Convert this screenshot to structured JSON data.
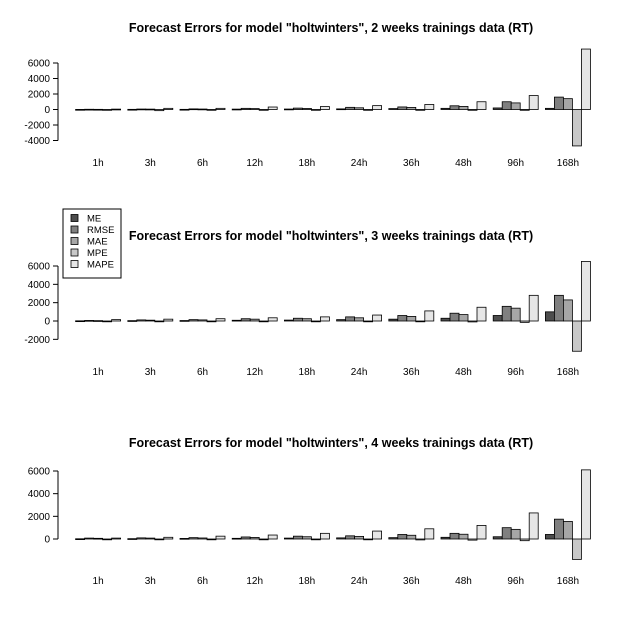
{
  "chart_data": [
    {
      "type": "bar",
      "title": "Forecast Errors for model \"holtwinters\", 2 weeks trainings data (RT)",
      "categories": [
        "1h",
        "3h",
        "6h",
        "12h",
        "18h",
        "24h",
        "36h",
        "48h",
        "96h",
        "168h"
      ],
      "yticks": [
        -4000,
        -2000,
        0,
        2000,
        4000,
        6000
      ],
      "ylim": [
        -4500,
        8200
      ],
      "grid": false,
      "series": [
        {
          "name": "ME",
          "color": "#4d4d4d",
          "values": [
            10,
            20,
            20,
            50,
            60,
            80,
            120,
            150,
            200,
            150
          ]
        },
        {
          "name": "RMSE",
          "color": "#7f7f7f",
          "values": [
            30,
            60,
            80,
            150,
            180,
            280,
            330,
            480,
            1000,
            1600
          ]
        },
        {
          "name": "MAE",
          "color": "#a6a6a6",
          "values": [
            20,
            50,
            60,
            120,
            140,
            220,
            270,
            400,
            850,
            1400
          ]
        },
        {
          "name": "MPE",
          "color": "#c8c8c8",
          "values": [
            -20,
            -150,
            -50,
            -60,
            -60,
            -80,
            -40,
            -60,
            -100,
            -4700
          ]
        },
        {
          "name": "MAPE",
          "color": "#e6e6e6",
          "values": [
            50,
            150,
            150,
            320,
            380,
            500,
            650,
            1000,
            1800,
            7800
          ]
        }
      ]
    },
    {
      "type": "bar",
      "title": "Forecast Errors for model \"holtwinters\", 3 weeks trainings data (RT)",
      "categories": [
        "1h",
        "3h",
        "6h",
        "12h",
        "18h",
        "24h",
        "36h",
        "48h",
        "96h",
        "168h"
      ],
      "yticks": [
        -2000,
        0,
        2000,
        4000,
        6000
      ],
      "ylim": [
        -3300,
        7000
      ],
      "grid": false,
      "legend": {
        "position": "top-left",
        "entries": [
          "ME",
          "RMSE",
          "MAE",
          "MPE",
          "MAPE"
        ]
      },
      "series": [
        {
          "name": "ME",
          "color": "#4d4d4d",
          "values": [
            20,
            40,
            50,
            80,
            100,
            150,
            200,
            300,
            600,
            1000
          ]
        },
        {
          "name": "RMSE",
          "color": "#7f7f7f",
          "values": [
            60,
            120,
            150,
            250,
            300,
            450,
            600,
            850,
            1600,
            2800
          ]
        },
        {
          "name": "MAE",
          "color": "#a6a6a6",
          "values": [
            40,
            90,
            120,
            200,
            250,
            350,
            500,
            700,
            1400,
            2300
          ]
        },
        {
          "name": "MPE",
          "color": "#c8c8c8",
          "values": [
            -30,
            -30,
            -40,
            -50,
            -50,
            -60,
            -80,
            -100,
            -150,
            -3300
          ]
        },
        {
          "name": "MAPE",
          "color": "#e6e6e6",
          "values": [
            150,
            200,
            250,
            350,
            450,
            650,
            1100,
            1500,
            2800,
            6500
          ]
        }
      ]
    },
    {
      "type": "bar",
      "title": "Forecast Errors for model \"holtwinters\", 4 weeks trainings data (RT)",
      "categories": [
        "1h",
        "3h",
        "6h",
        "12h",
        "18h",
        "24h",
        "36h",
        "48h",
        "96h",
        "168h"
      ],
      "yticks": [
        0,
        2000,
        4000,
        6000
      ],
      "ylim": [
        -1900,
        6400
      ],
      "grid": false,
      "series": [
        {
          "name": "ME",
          "color": "#4d4d4d",
          "values": [
            20,
            30,
            50,
            60,
            80,
            100,
            120,
            150,
            200,
            400
          ]
        },
        {
          "name": "RMSE",
          "color": "#7f7f7f",
          "values": [
            80,
            100,
            120,
            180,
            250,
            280,
            400,
            500,
            1000,
            1750
          ]
        },
        {
          "name": "MAE",
          "color": "#a6a6a6",
          "values": [
            60,
            80,
            90,
            140,
            200,
            230,
            330,
            420,
            850,
            1550
          ]
        },
        {
          "name": "MPE",
          "color": "#c8c8c8",
          "values": [
            -20,
            -20,
            -30,
            -40,
            -50,
            -60,
            -80,
            -100,
            -150,
            -1800
          ]
        },
        {
          "name": "MAPE",
          "color": "#e6e6e6",
          "values": [
            80,
            150,
            250,
            350,
            500,
            700,
            900,
            1200,
            2300,
            6100
          ]
        }
      ]
    }
  ]
}
